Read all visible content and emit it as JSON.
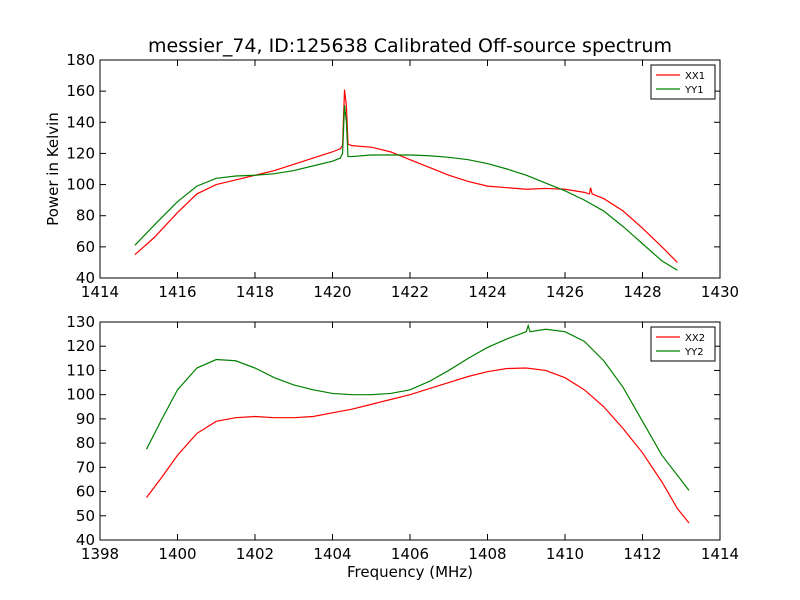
{
  "chart_data": [
    {
      "type": "line",
      "title": "messier_74, ID:125638 Calibrated Off-source spectrum",
      "xlabel": "",
      "ylabel": "Power in Kelvin",
      "xlim": [
        1414,
        1430
      ],
      "ylim": [
        40,
        180
      ],
      "x_ticks": [
        "1414",
        "1416",
        "1418",
        "1420",
        "1422",
        "1424",
        "1426",
        "1428",
        "1430"
      ],
      "y_ticks": [
        "40",
        "60",
        "80",
        "100",
        "120",
        "140",
        "160",
        "180"
      ],
      "legend_position": "top-right",
      "grid": false,
      "series": [
        {
          "name": "XX1",
          "color": "#ff0000",
          "points": [
            [
              1414.9,
              55
            ],
            [
              1415.4,
              66
            ],
            [
              1416.0,
              82
            ],
            [
              1416.5,
              94
            ],
            [
              1417.0,
              100
            ],
            [
              1417.5,
              103
            ],
            [
              1418.0,
              106
            ],
            [
              1418.5,
              109
            ],
            [
              1419.0,
              113
            ],
            [
              1419.5,
              117
            ],
            [
              1420.0,
              121
            ],
            [
              1420.2,
              123
            ],
            [
              1420.26,
              125
            ],
            [
              1420.31,
              161
            ],
            [
              1420.36,
              150
            ],
            [
              1420.4,
              126
            ],
            [
              1420.5,
              125
            ],
            [
              1421.0,
              124
            ],
            [
              1421.5,
              121
            ],
            [
              1422.0,
              116
            ],
            [
              1422.5,
              111
            ],
            [
              1423.0,
              106
            ],
            [
              1423.5,
              102
            ],
            [
              1424.0,
              99
            ],
            [
              1424.5,
              98
            ],
            [
              1425.0,
              97
            ],
            [
              1425.5,
              97.5
            ],
            [
              1426.0,
              97
            ],
            [
              1426.5,
              95
            ],
            [
              1426.63,
              94
            ],
            [
              1426.66,
              98
            ],
            [
              1426.7,
              94
            ],
            [
              1427.0,
              91
            ],
            [
              1427.5,
              83
            ],
            [
              1428.0,
              72
            ],
            [
              1428.5,
              60
            ],
            [
              1428.9,
              50
            ]
          ]
        },
        {
          "name": "YY1",
          "color": "#008000",
          "points": [
            [
              1414.9,
              61
            ],
            [
              1415.4,
              74
            ],
            [
              1416.0,
              89
            ],
            [
              1416.5,
              99
            ],
            [
              1417.0,
              104
            ],
            [
              1417.5,
              105.5
            ],
            [
              1418.0,
              106
            ],
            [
              1418.5,
              107
            ],
            [
              1419.0,
              109
            ],
            [
              1419.5,
              112
            ],
            [
              1420.0,
              115
            ],
            [
              1420.2,
              117
            ],
            [
              1420.26,
              120
            ],
            [
              1420.31,
              151
            ],
            [
              1420.36,
              140
            ],
            [
              1420.4,
              118
            ],
            [
              1420.5,
              118
            ],
            [
              1421.0,
              119
            ],
            [
              1421.5,
              119
            ],
            [
              1422.0,
              119
            ],
            [
              1422.5,
              118.5
            ],
            [
              1423.0,
              117.5
            ],
            [
              1423.5,
              116
            ],
            [
              1424.0,
              113.5
            ],
            [
              1424.5,
              110
            ],
            [
              1425.0,
              106
            ],
            [
              1425.5,
              101
            ],
            [
              1426.0,
              96
            ],
            [
              1426.5,
              90
            ],
            [
              1427.0,
              83
            ],
            [
              1427.5,
              73
            ],
            [
              1428.0,
              62
            ],
            [
              1428.5,
              51
            ],
            [
              1428.9,
              45
            ]
          ]
        }
      ]
    },
    {
      "type": "line",
      "title": "",
      "xlabel": "Frequency (MHz)",
      "ylabel": "",
      "xlim": [
        1398,
        1414
      ],
      "ylim": [
        40,
        130
      ],
      "x_ticks": [
        "1398",
        "1400",
        "1402",
        "1404",
        "1406",
        "1408",
        "1410",
        "1412",
        "1414"
      ],
      "y_ticks": [
        "40",
        "50",
        "60",
        "70",
        "80",
        "90",
        "100",
        "110",
        "120",
        "130"
      ],
      "legend_position": "top-right",
      "grid": false,
      "series": [
        {
          "name": "XX2",
          "color": "#ff0000",
          "points": [
            [
              1399.2,
              57.5
            ],
            [
              1399.6,
              66
            ],
            [
              1400.0,
              75
            ],
            [
              1400.5,
              84
            ],
            [
              1401.0,
              89
            ],
            [
              1401.5,
              90.5
            ],
            [
              1402.0,
              91
            ],
            [
              1402.5,
              90.5
            ],
            [
              1403.0,
              90.5
            ],
            [
              1403.5,
              91
            ],
            [
              1404.0,
              92.5
            ],
            [
              1404.5,
              94
            ],
            [
              1405.0,
              96
            ],
            [
              1405.5,
              98
            ],
            [
              1406.0,
              100
            ],
            [
              1406.5,
              102.5
            ],
            [
              1407.0,
              105
            ],
            [
              1407.5,
              107.5
            ],
            [
              1408.0,
              109.5
            ],
            [
              1408.5,
              110.8
            ],
            [
              1409.0,
              111
            ],
            [
              1409.5,
              110
            ],
            [
              1410.0,
              107
            ],
            [
              1410.5,
              102
            ],
            [
              1411.0,
              95
            ],
            [
              1411.5,
              86
            ],
            [
              1412.0,
              76
            ],
            [
              1412.5,
              64
            ],
            [
              1412.9,
              53
            ],
            [
              1413.2,
              47
            ]
          ]
        },
        {
          "name": "YY2",
          "color": "#008000",
          "points": [
            [
              1399.2,
              77.5
            ],
            [
              1399.6,
              90
            ],
            [
              1400.0,
              102
            ],
            [
              1400.5,
              111
            ],
            [
              1401.0,
              114.5
            ],
            [
              1401.5,
              114
            ],
            [
              1402.0,
              111
            ],
            [
              1402.5,
              107
            ],
            [
              1403.0,
              104
            ],
            [
              1403.5,
              102
            ],
            [
              1404.0,
              100.5
            ],
            [
              1404.5,
              100
            ],
            [
              1405.0,
              100
            ],
            [
              1405.5,
              100.5
            ],
            [
              1406.0,
              102
            ],
            [
              1406.5,
              105.5
            ],
            [
              1407.0,
              110
            ],
            [
              1407.5,
              115
            ],
            [
              1408.0,
              119.5
            ],
            [
              1408.5,
              123
            ],
            [
              1409.0,
              126
            ],
            [
              1409.05,
              128.5
            ],
            [
              1409.1,
              126
            ],
            [
              1409.5,
              127
            ],
            [
              1410.0,
              126
            ],
            [
              1410.5,
              122
            ],
            [
              1411.0,
              114
            ],
            [
              1411.5,
              103
            ],
            [
              1412.0,
              89
            ],
            [
              1412.5,
              75
            ],
            [
              1413.2,
              60.5
            ]
          ]
        }
      ]
    }
  ]
}
